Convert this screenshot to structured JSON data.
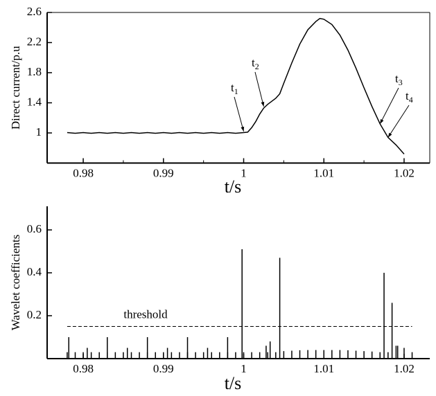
{
  "chart_data": [
    {
      "type": "line",
      "ylabel": "Direct current/p.u",
      "xlabel": "t/s",
      "color": "#000000",
      "xlim": [
        0.9755,
        1.0232
      ],
      "ylim": [
        0.6,
        2.6
      ],
      "xticks": [
        0.98,
        0.99,
        1,
        1.01,
        1.02
      ],
      "yticks": [
        1,
        1.4,
        1.8,
        2.2,
        2.6
      ],
      "x": [
        0.978,
        0.979,
        0.98,
        0.981,
        0.982,
        0.983,
        0.984,
        0.985,
        0.986,
        0.987,
        0.988,
        0.989,
        0.99,
        0.991,
        0.992,
        0.993,
        0.994,
        0.995,
        0.996,
        0.997,
        0.998,
        0.999,
        1.0,
        1.0005,
        1.001,
        1.0015,
        1.002,
        1.0025,
        1.003,
        1.0035,
        1.004,
        1.0045,
        1.005,
        1.006,
        1.007,
        1.008,
        1.009,
        1.0095,
        1.01,
        1.011,
        1.012,
        1.013,
        1.014,
        1.015,
        1.016,
        1.017,
        1.0175,
        1.018,
        1.019,
        1.02
      ],
      "values": [
        1.005,
        0.995,
        1.005,
        0.995,
        1.005,
        0.995,
        1.005,
        0.995,
        1.005,
        0.995,
        1.005,
        0.995,
        1.005,
        0.995,
        1.005,
        0.995,
        1.005,
        0.995,
        1.005,
        0.995,
        1.005,
        0.995,
        1.005,
        1.01,
        1.07,
        1.15,
        1.25,
        1.33,
        1.38,
        1.42,
        1.46,
        1.52,
        1.66,
        1.93,
        2.18,
        2.37,
        2.48,
        2.52,
        2.51,
        2.44,
        2.3,
        2.1,
        1.86,
        1.6,
        1.35,
        1.12,
        1.03,
        0.94,
        0.84,
        0.72
      ],
      "annotations": [
        {
          "label": "t",
          "sub": "1",
          "x": 1.0,
          "y": 1.02
        },
        {
          "label": "t",
          "sub": "2",
          "x": 1.0025,
          "y": 1.35
        },
        {
          "label": "t",
          "sub": "3",
          "x": 1.017,
          "y": 1.12
        },
        {
          "label": "t",
          "sub": "4",
          "x": 1.018,
          "y": 0.94
        }
      ]
    },
    {
      "type": "bar",
      "ylabel": "Wavelet coefficients",
      "xlabel": "t/s",
      "color": "#000000",
      "xlim": [
        0.9755,
        1.0232
      ],
      "ylim": [
        0,
        0.71
      ],
      "xticks": [
        0.98,
        0.99,
        1,
        1.01,
        1.02
      ],
      "yticks": [
        0.2,
        0.4,
        0.6
      ],
      "threshold": {
        "label": "threshold",
        "value": 0.15,
        "x": [
          0.978,
          1.021
        ]
      },
      "x": [
        0.978,
        0.979,
        0.98,
        0.981,
        0.982,
        0.983,
        0.984,
        0.985,
        0.986,
        0.987,
        0.988,
        0.989,
        0.99,
        0.991,
        0.992,
        0.993,
        0.994,
        0.995,
        0.996,
        0.997,
        0.998,
        0.999,
        1.0,
        1.001,
        1.002,
        1.003,
        1.004,
        1.005,
        1.006,
        1.007,
        1.008,
        1.009,
        1.01,
        1.011,
        1.012,
        1.013,
        1.014,
        1.015,
        1.016,
        1.017,
        1.018,
        1.019,
        1.02,
        1.021,
        0.9782,
        0.9805,
        0.983,
        0.9855,
        0.988,
        0.9905,
        0.993,
        0.9955,
        0.998,
        0.9998,
        1.0028,
        1.0033,
        1.0045,
        1.0175,
        1.0185,
        1.0192
      ],
      "values": [
        0.03,
        0.03,
        0.03,
        0.03,
        0.03,
        0.03,
        0.03,
        0.03,
        0.03,
        0.03,
        0.03,
        0.03,
        0.03,
        0.03,
        0.03,
        0.03,
        0.03,
        0.03,
        0.03,
        0.03,
        0.03,
        0.03,
        0.03,
        0.03,
        0.03,
        0.03,
        0.03,
        0.035,
        0.037,
        0.039,
        0.04,
        0.04,
        0.04,
        0.04,
        0.04,
        0.039,
        0.037,
        0.035,
        0.033,
        0.03,
        0.03,
        0.06,
        0.05,
        0.03,
        0.1,
        0.05,
        0.1,
        0.05,
        0.1,
        0.05,
        0.1,
        0.05,
        0.1,
        0.51,
        0.06,
        0.08,
        0.47,
        0.4,
        0.26,
        0.06
      ]
    }
  ]
}
